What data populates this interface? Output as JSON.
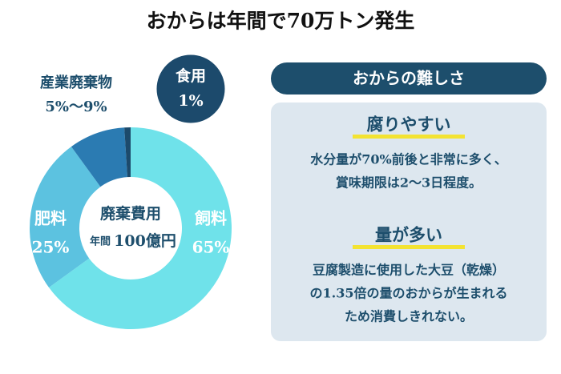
{
  "chart_data": {
    "type": "pie",
    "title": "おからは年間で70万トン発生",
    "categories": [
      "飼料",
      "肥料",
      "産業廃棄物",
      "食用"
    ],
    "values": [
      65,
      25,
      9,
      1
    ],
    "value_labels": [
      "65%",
      "25%",
      "5%〜9%",
      "1%"
    ],
    "colors": [
      "#6fe2ea",
      "#5cc2e0",
      "#2b7bb2",
      "#1c4a6c"
    ],
    "center_text": [
      "廃棄費用",
      "年間",
      "100億円"
    ]
  },
  "panel": {
    "header": "おからの難しさ",
    "sections": [
      {
        "heading": "腐りやすい",
        "lines": [
          "水分量が70%前後と非常に多く、",
          "賞味期限は2〜3日程度。"
        ]
      },
      {
        "heading": "量が多い",
        "lines": [
          "豆腐製造に使用した大豆（乾燥）",
          "の1.35倍の量のおからが生まれる",
          "ため消費しきれない。"
        ]
      }
    ]
  }
}
